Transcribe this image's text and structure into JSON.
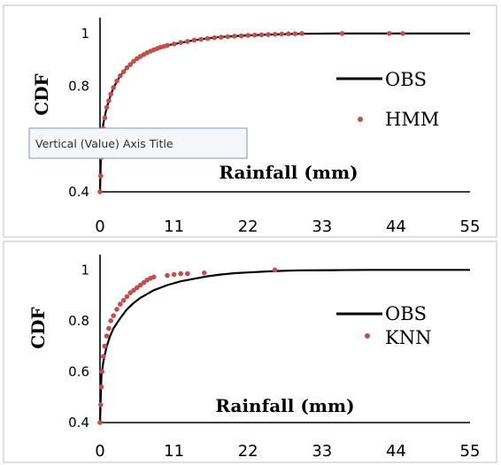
{
  "chart_data": [
    {
      "type": "line",
      "ylabel": "CDF",
      "xlabel": "Rainfall  (mm)",
      "x_ticks": [
        "0",
        "11",
        "22",
        "33",
        "44",
        "55"
      ],
      "y_ticks": [
        "0.4",
        "0.8",
        "1"
      ],
      "xlim": [
        0,
        55
      ],
      "ylim": [
        0.4,
        1.06
      ],
      "legend_position": "right",
      "grid": false,
      "series": [
        {
          "name": "OBS",
          "kind": "line",
          "color": "#000000",
          "x": [
            0,
            0.2,
            0.5,
            1,
            1.5,
            2,
            3,
            4,
            5,
            6,
            7,
            8,
            10,
            12,
            14,
            16,
            18,
            20,
            22,
            25,
            28,
            30,
            35,
            40,
            45,
            50,
            55
          ],
          "y": [
            0.4,
            0.6,
            0.66,
            0.72,
            0.76,
            0.795,
            0.84,
            0.87,
            0.895,
            0.91,
            0.925,
            0.935,
            0.955,
            0.965,
            0.975,
            0.982,
            0.987,
            0.99,
            0.993,
            0.996,
            0.998,
            0.999,
            1,
            1,
            1,
            1,
            1
          ]
        },
        {
          "name": "HMM",
          "kind": "scatter",
          "color": "#c0504d",
          "x": [
            0,
            0.1,
            0.2,
            0.3,
            0.5,
            0.7,
            1,
            1.3,
            1.6,
            2,
            2.5,
            3,
            3.5,
            4,
            4.5,
            5,
            5.5,
            6,
            6.5,
            7,
            7.5,
            8,
            8.5,
            9,
            9.5,
            10,
            11,
            12,
            13,
            14,
            15,
            16,
            17,
            18,
            19,
            20,
            21,
            22,
            23,
            24,
            25,
            26,
            27,
            28,
            29,
            30,
            36,
            43,
            45
          ],
          "y": [
            0.4,
            0.46,
            0.53,
            0.58,
            0.64,
            0.68,
            0.72,
            0.745,
            0.77,
            0.795,
            0.82,
            0.84,
            0.855,
            0.87,
            0.882,
            0.895,
            0.905,
            0.913,
            0.92,
            0.927,
            0.933,
            0.938,
            0.943,
            0.948,
            0.951,
            0.955,
            0.96,
            0.966,
            0.97,
            0.975,
            0.978,
            0.981,
            0.984,
            0.986,
            0.988,
            0.99,
            0.991,
            0.993,
            0.994,
            0.995,
            0.996,
            0.997,
            0.998,
            0.999,
            0.999,
            1,
            1,
            1,
            1
          ]
        }
      ]
    },
    {
      "type": "line",
      "ylabel": "CDF",
      "xlabel": "Rainfall  (mm)",
      "x_ticks": [
        "0",
        "11",
        "22",
        "33",
        "44",
        "55"
      ],
      "y_ticks": [
        "0.4",
        "0.6",
        "0.8",
        "1"
      ],
      "xlim": [
        0,
        55
      ],
      "ylim": [
        0.4,
        1.06
      ],
      "legend_position": "right",
      "grid": false,
      "series": [
        {
          "name": "OBS",
          "kind": "line",
          "color": "#000000",
          "x": [
            0,
            0.2,
            0.5,
            1,
            1.5,
            2,
            3,
            4,
            5,
            6,
            7,
            8,
            10,
            12,
            14,
            16,
            18,
            20,
            22,
            25,
            28,
            30,
            35,
            40,
            45,
            50,
            55
          ],
          "y": [
            0.4,
            0.58,
            0.64,
            0.7,
            0.74,
            0.77,
            0.81,
            0.845,
            0.87,
            0.89,
            0.905,
            0.92,
            0.94,
            0.955,
            0.965,
            0.975,
            0.982,
            0.987,
            0.99,
            0.994,
            0.997,
            0.998,
            0.999,
            1,
            1,
            1,
            1
          ]
        },
        {
          "name": "KNN",
          "kind": "scatter",
          "color": "#c0504d",
          "x": [
            0,
            0.1,
            0.2,
            0.3,
            0.5,
            0.7,
            1,
            1.3,
            1.6,
            2,
            2.5,
            3,
            3.5,
            4,
            4.5,
            5,
            5.5,
            6,
            6.5,
            7,
            7.5,
            8,
            10,
            11,
            12,
            13,
            15.5,
            26
          ],
          "y": [
            0.4,
            0.47,
            0.54,
            0.6,
            0.66,
            0.7,
            0.74,
            0.77,
            0.8,
            0.82,
            0.845,
            0.865,
            0.88,
            0.895,
            0.91,
            0.92,
            0.93,
            0.94,
            0.95,
            0.96,
            0.967,
            0.972,
            0.978,
            0.982,
            0.985,
            0.985,
            0.988,
            1
          ]
        }
      ]
    }
  ],
  "tooltip": {
    "text": "Vertical (Value) Axis Title"
  }
}
